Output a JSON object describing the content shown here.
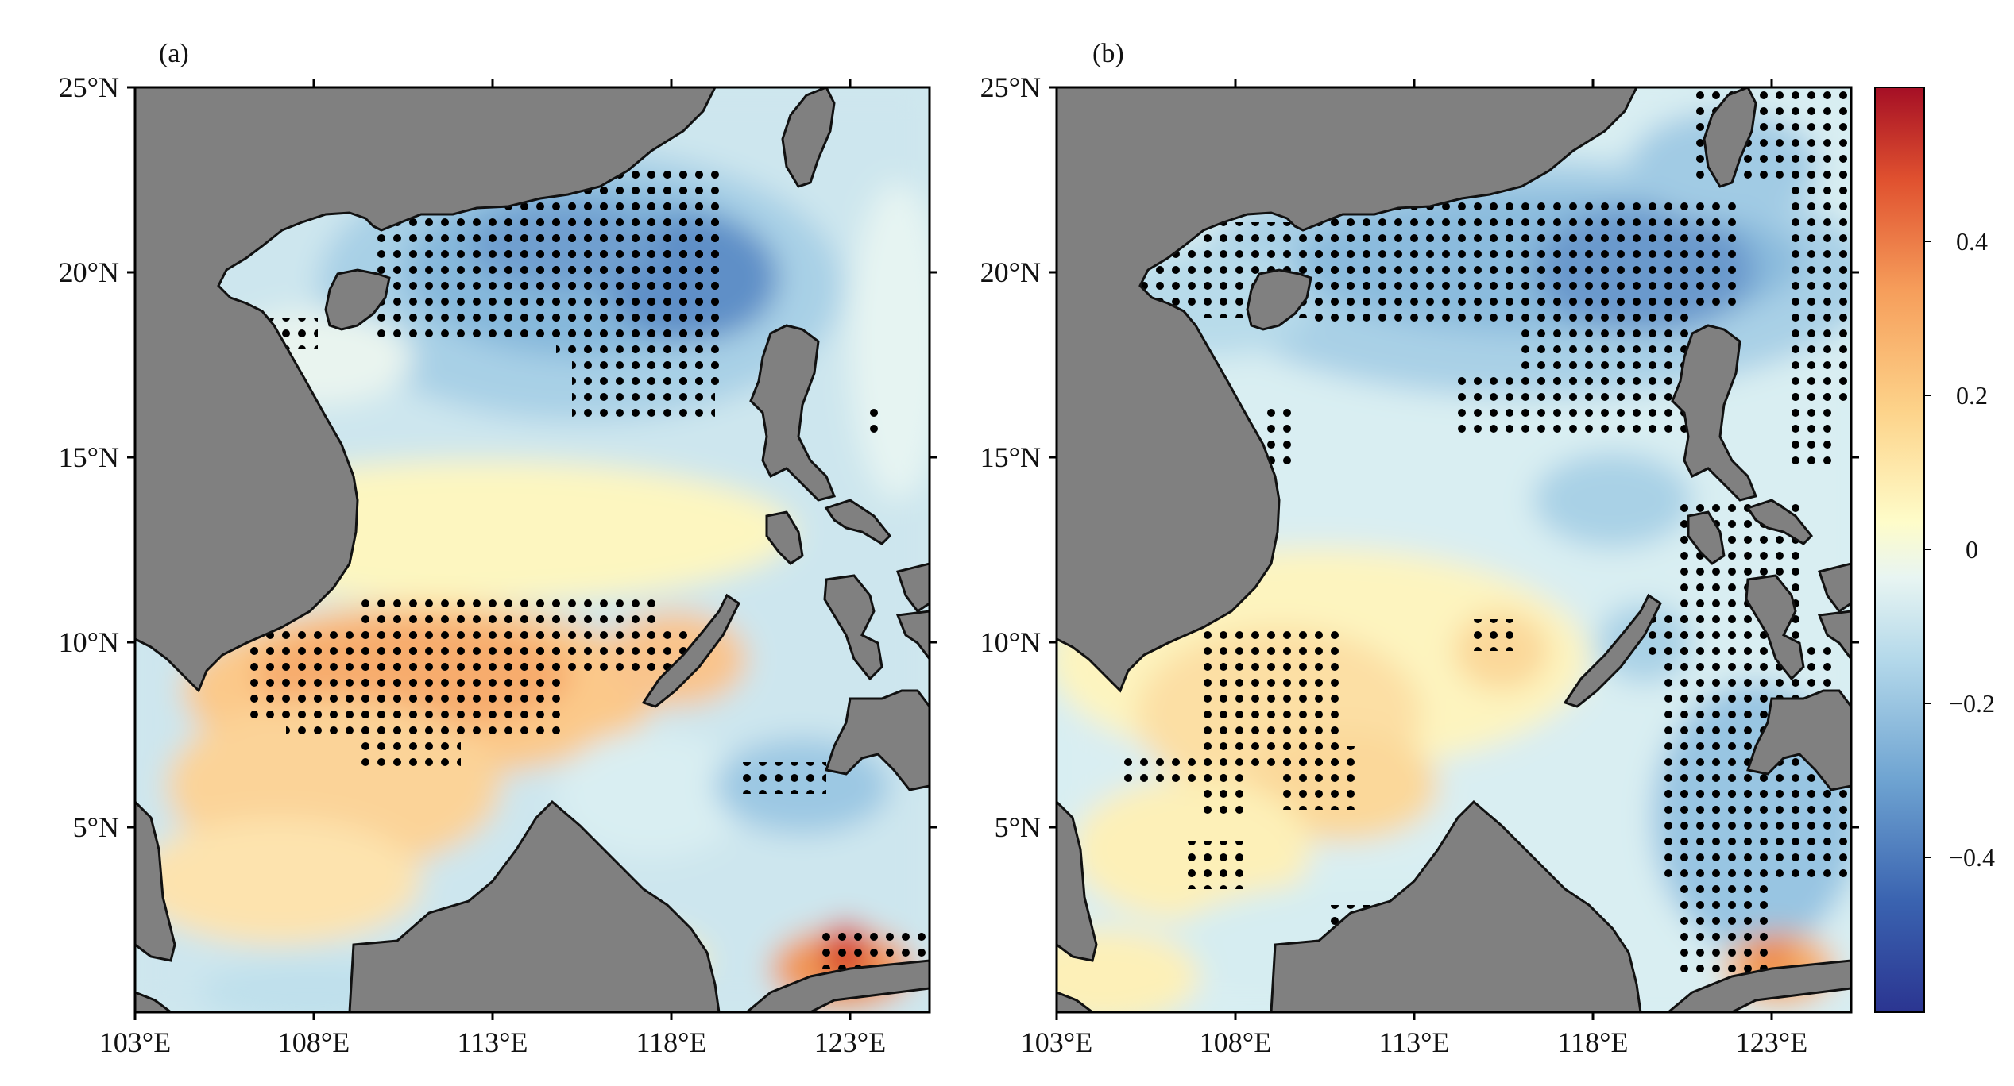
{
  "panels": [
    {
      "label": "(a)"
    },
    {
      "label": "(b)"
    }
  ],
  "x_ticks": [
    "103°E",
    "108°E",
    "113°E",
    "118°E",
    "123°E"
  ],
  "y_ticks": [
    "25°N",
    "20°N",
    "15°N",
    "10°N",
    "5°N"
  ],
  "colorbar": {
    "ticks": [
      "0.4",
      "0.2",
      "0",
      "−0.2",
      "−0.4"
    ],
    "tick_values": [
      0.4,
      0.2,
      0,
      -0.2,
      -0.4
    ],
    "range": [
      -0.6,
      0.6
    ],
    "colormap": [
      "#2b3591",
      "#3a63b0",
      "#6ea3d1",
      "#b3d8ea",
      "#e8f5f2",
      "#fefcc9",
      "#fdd38a",
      "#f69e5b",
      "#e0512f",
      "#a50f25"
    ]
  },
  "colors": {
    "land": "#808080",
    "coast": "#111111",
    "significance_dot": "#000000",
    "background_field": "#cfe8ef"
  }
}
